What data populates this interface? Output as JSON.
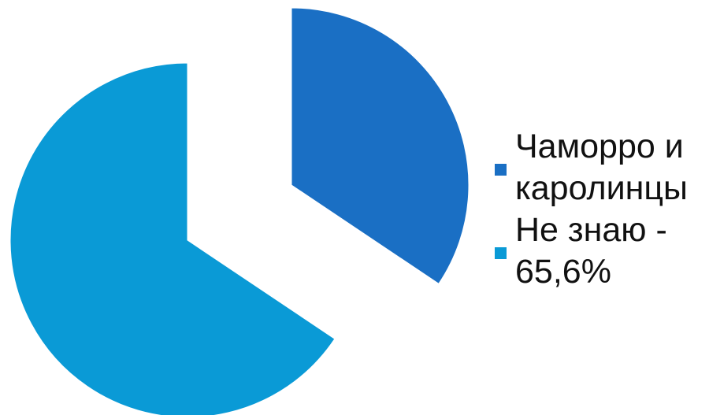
{
  "chart_data": {
    "type": "pie",
    "title": "",
    "start_angle_deg": 0,
    "direction": "clockwise",
    "exploded": true,
    "series": [
      {
        "name": "",
        "values": [
          34.4,
          65.6
        ],
        "labels": [
          "Чаморро и каролинцы",
          "Не знаю - 65,6%"
        ],
        "colors": [
          "#1a6fc4",
          "#0a9ad6"
        ]
      }
    ],
    "legend": {
      "position": "right",
      "items": [
        {
          "label": "Чаморро и каролинцы",
          "color": "#1a6fc4"
        },
        {
          "label": "Не знаю - 65,6%",
          "color": "#0a9ad6"
        }
      ]
    }
  }
}
